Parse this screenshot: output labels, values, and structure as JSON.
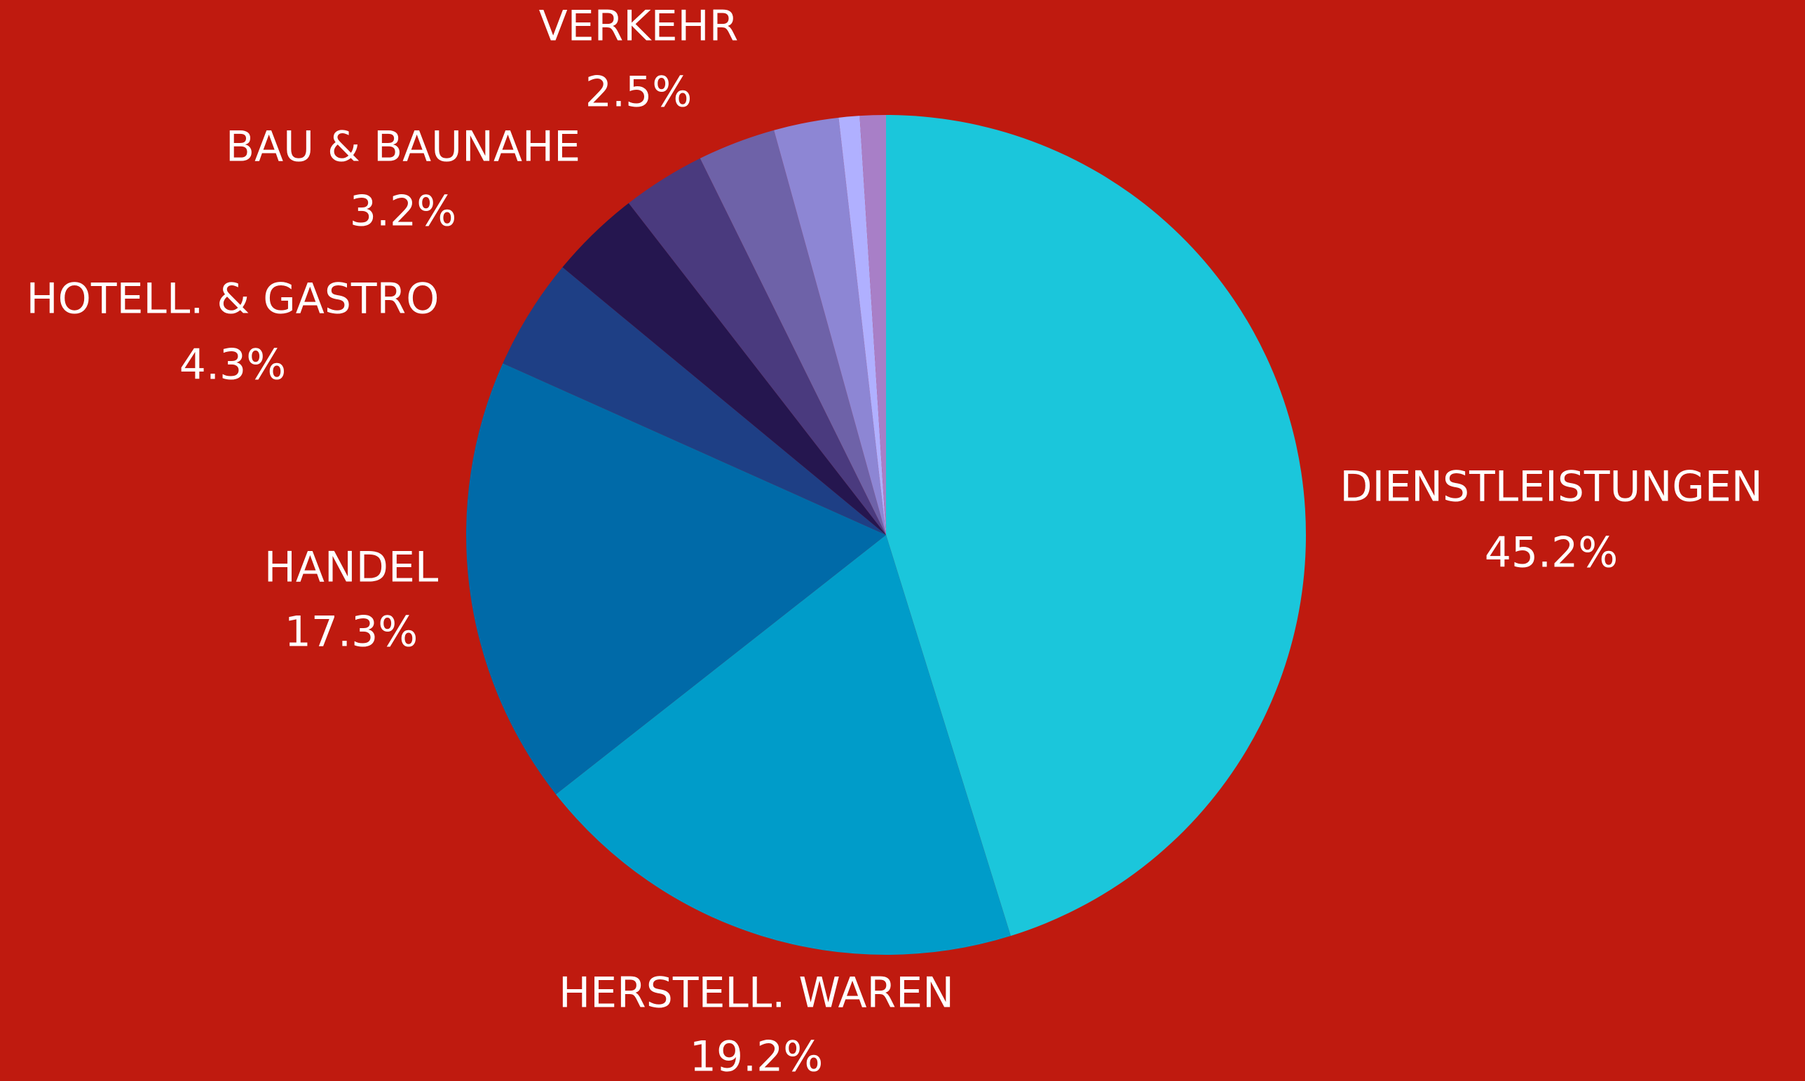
{
  "chart_data": {
    "type": "pie",
    "categories": [
      "DIENSTLEISTUNGEN",
      "HERSTELL. WAREN",
      "HANDEL",
      "HOTELL. & GASTRO",
      null,
      "BAU & BAUNAHE",
      null,
      "VERKEHR",
      null,
      null
    ],
    "values": [
      45.2,
      19.2,
      17.3,
      4.3,
      3.5,
      3.2,
      3.0,
      2.5,
      0.8,
      1.0
    ],
    "value_labels": [
      "45.2%",
      "19.2%",
      "17.3%",
      "4.3%",
      null,
      "3.2%",
      null,
      "2.5%",
      null,
      null
    ],
    "colors": [
      "#1bc6db",
      "#009cc9",
      "#006aa8",
      "#1e3f85",
      "#25164f",
      "#4a3a7e",
      "#6e62a8",
      "#8d86d4",
      "#b0b0ff",
      "#a87fc7"
    ]
  }
}
